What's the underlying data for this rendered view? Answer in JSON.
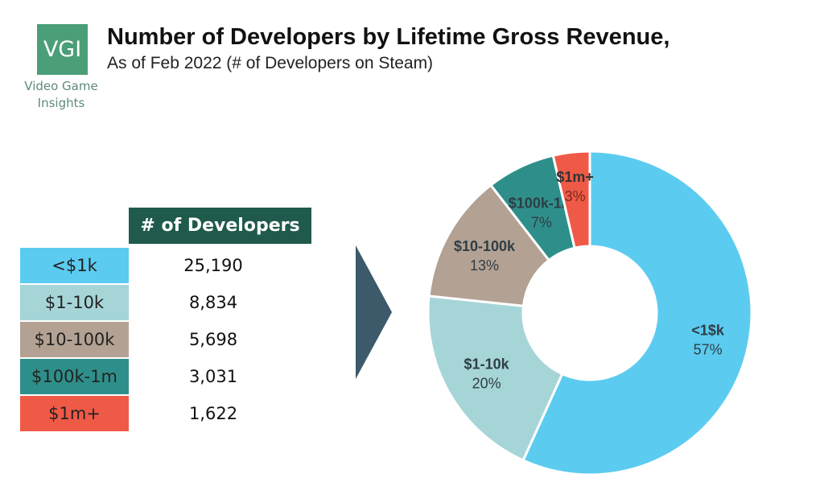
{
  "logo": {
    "mark": "VGI",
    "name_line1": "Video Game",
    "name_line2": "Insights",
    "color": "#4a9e78"
  },
  "chart_data": {
    "type": "pie",
    "style": "donut",
    "title": "Number of Developers by Lifetime Gross Revenue,",
    "subtitle": "As of Feb 2022 (# of Developers on Steam)",
    "table_header": "# of Developers",
    "categories": [
      "<$1k",
      "$1-10k",
      "$10-100k",
      "$100k-1m",
      "$1m+"
    ],
    "slice_labels": [
      "<1$k",
      "$1-10k",
      "$10-100k",
      "$100k-1m",
      "$1m+"
    ],
    "values": [
      25190,
      8834,
      5698,
      3031,
      1622
    ],
    "value_labels": [
      "25,190",
      "8,834",
      "5,698",
      "3,031",
      "1,622"
    ],
    "percent_labels": [
      "57%",
      "20%",
      "13%",
      "7%",
      "3%"
    ],
    "colors": [
      "#5ccbf0",
      "#a6d5d8",
      "#b3a293",
      "#2e8f8a",
      "#ef5a47"
    ],
    "header_color": "#1f5a4c",
    "start_angle": "top",
    "direction": "clockwise"
  }
}
